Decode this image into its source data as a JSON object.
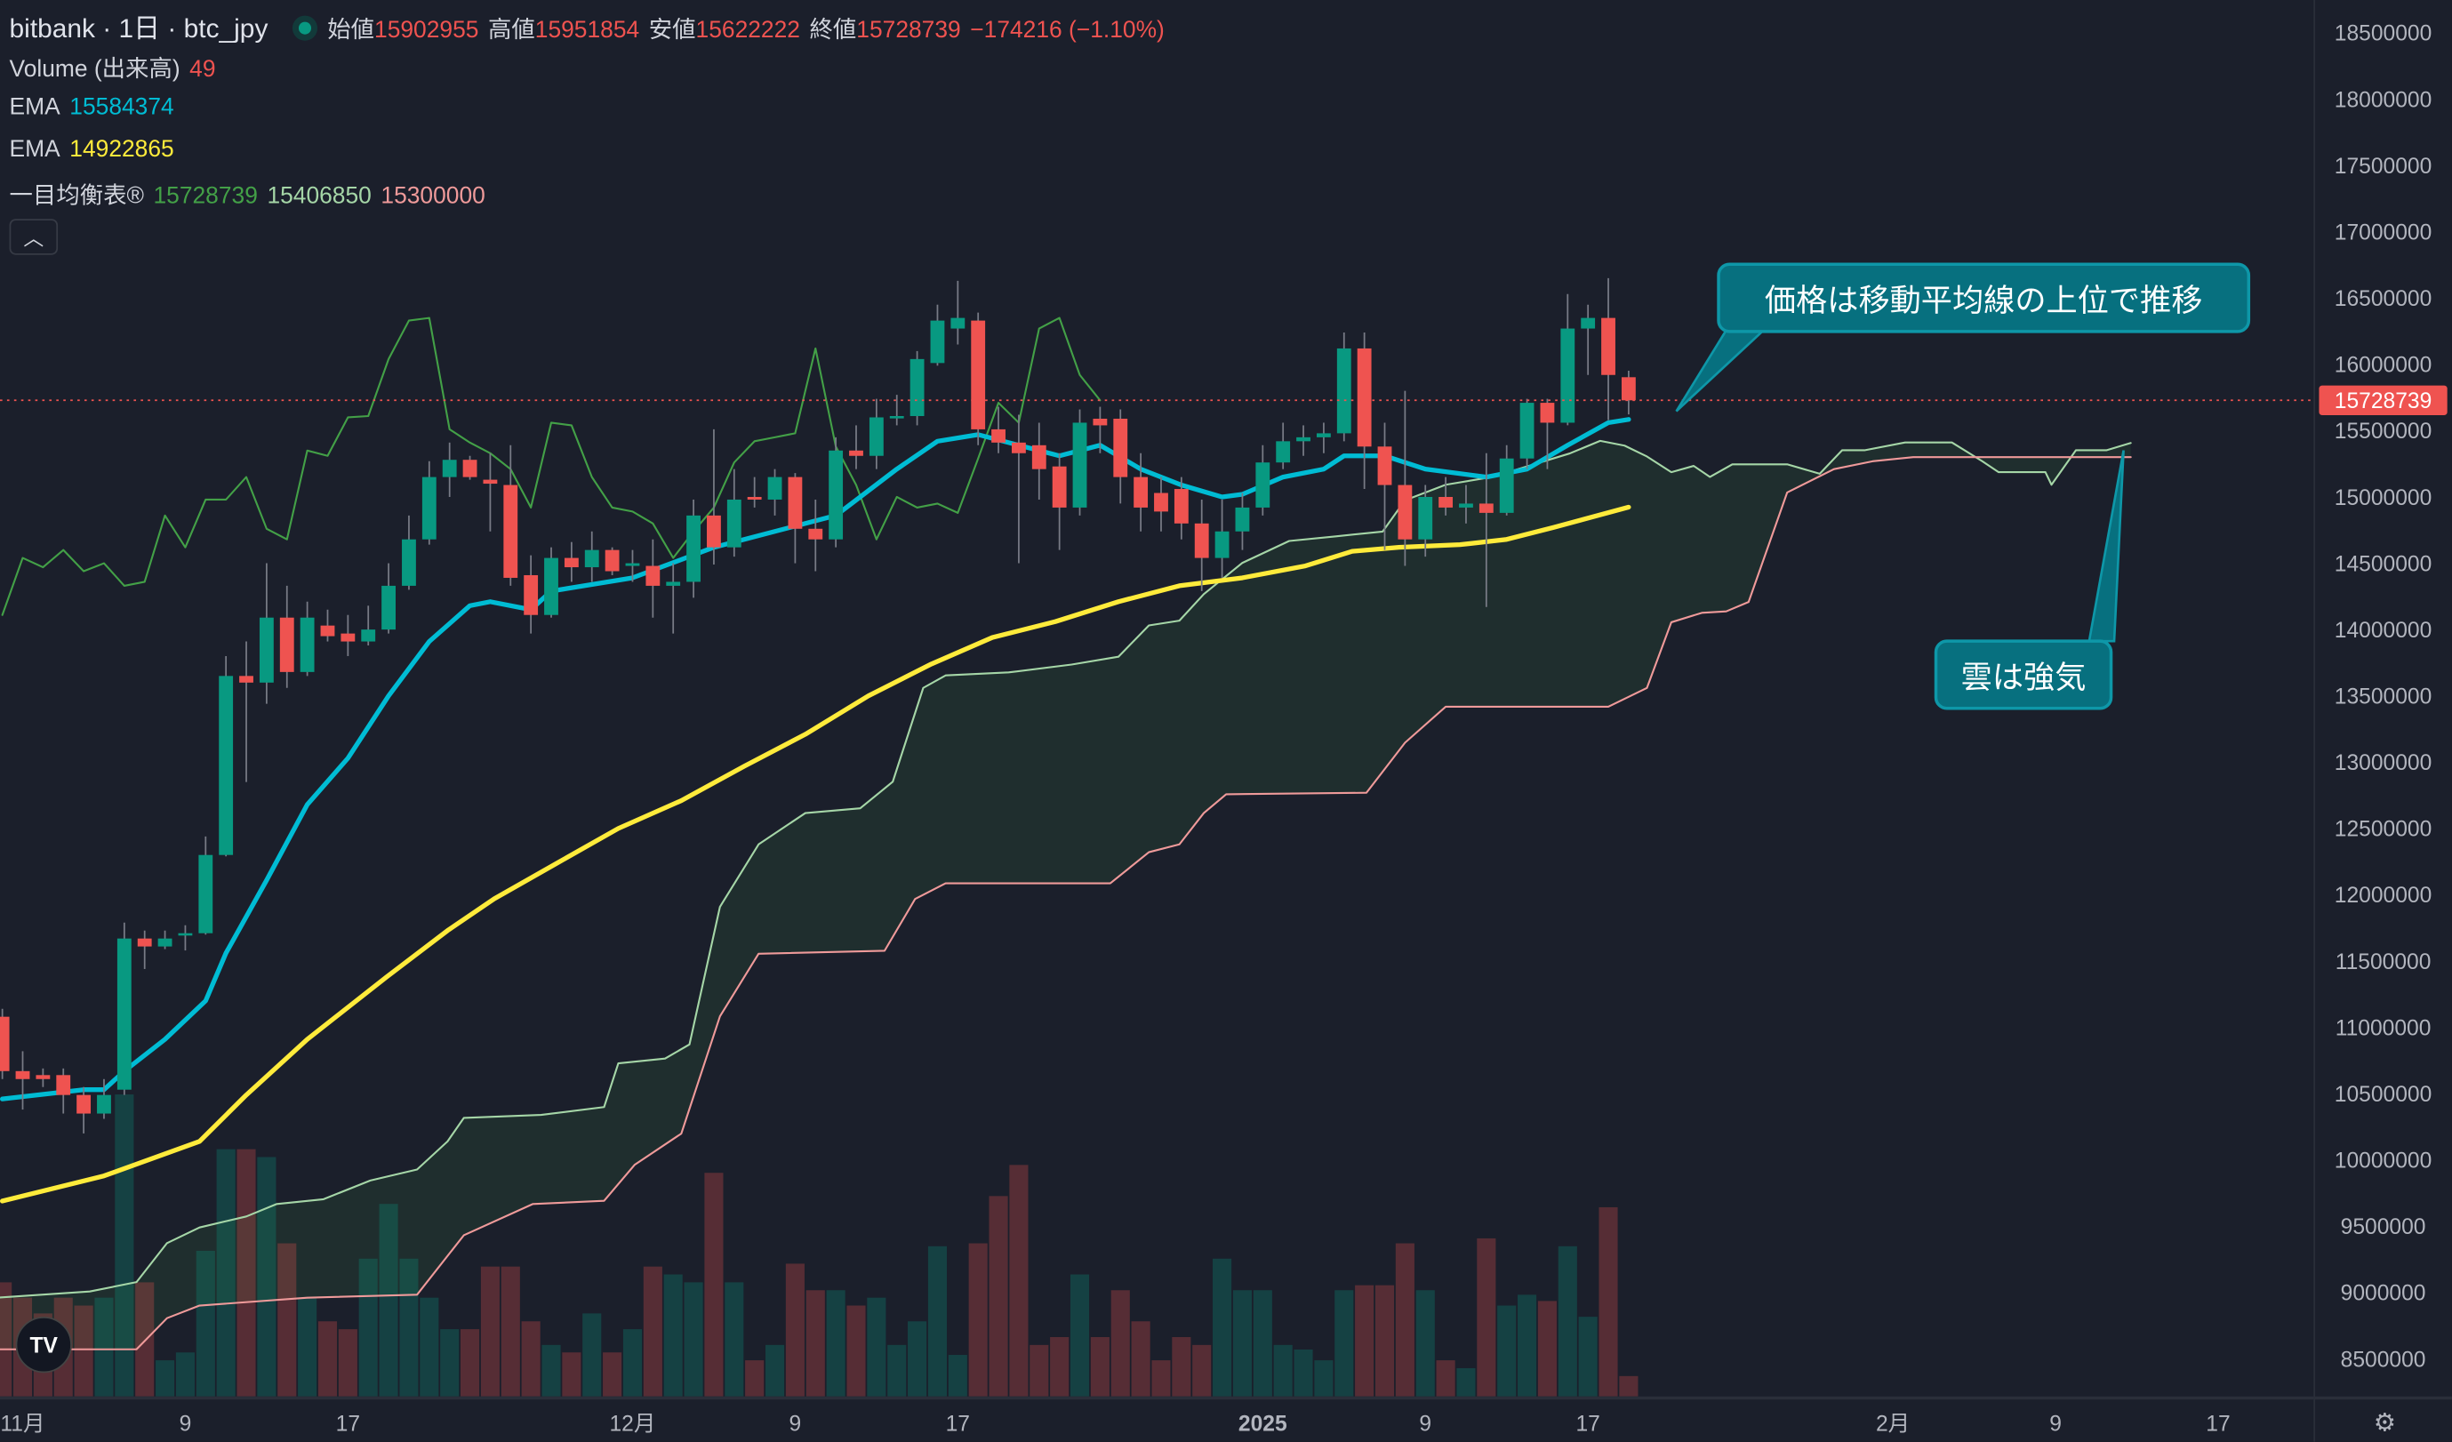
{
  "header": {
    "title": "bitbank · 1日 · btc_jpy",
    "open_label": "始値",
    "open": "15902955",
    "high_label": "高値",
    "high": "15951854",
    "low_label": "安値",
    "low": "15622222",
    "close_label": "終値",
    "close": "15728739",
    "change": "−174216 (−1.10%)"
  },
  "indicators": {
    "volume_label": "Volume (出来高)",
    "volume_value": "49",
    "ema1_label": "EMA",
    "ema1_value": "15584374",
    "ema2_label": "EMA",
    "ema2_value": "14922865",
    "ichimoku_label": "一目均衡表®",
    "ichimoku_lagging": "15728739",
    "ichimoku_span_a": "15406850",
    "ichimoku_span_b": "15300000",
    "collapse_icon": "chevron-up"
  },
  "annotations": {
    "callout_1": "価格は移動平均線の上位で推移",
    "callout_2": "雲は強気"
  },
  "colors": {
    "background": "#1b1f2b",
    "up": "#089981",
    "down": "#ef5350",
    "ema_fast": "#00bcd4",
    "ema_slow": "#ffeb3b",
    "lagging": "#43a047",
    "span_a": "#a5d6a7",
    "span_b": "#ef9a9a",
    "callout": "#07707f"
  },
  "chart_data": {
    "type": "candlestick",
    "symbol": "btc_jpy",
    "interval": "1日",
    "ylim": [
      8300000,
      18700000
    ],
    "y_ticks": [
      18500000,
      18000000,
      17500000,
      17000000,
      16500000,
      16000000,
      15500000,
      15000000,
      14500000,
      14000000,
      13500000,
      13000000,
      12500000,
      12000000,
      11500000,
      11000000,
      10500000,
      10000000,
      9500000,
      9000000,
      8500000
    ],
    "last_price": "15728739",
    "x_ticks": [
      {
        "label": "11月",
        "day": 1
      },
      {
        "label": "9",
        "day": 9
      },
      {
        "label": "17",
        "day": 17
      },
      {
        "label": "12月",
        "day": 31
      },
      {
        "label": "9",
        "day": 39
      },
      {
        "label": "17",
        "day": 47
      },
      {
        "label": "2025",
        "day": 62,
        "bold": true
      },
      {
        "label": "9",
        "day": 70
      },
      {
        "label": "17",
        "day": 78
      },
      {
        "label": "2月",
        "day": 93
      },
      {
        "label": "9",
        "day": 101
      },
      {
        "label": "17",
        "day": 109
      }
    ],
    "ohlc_format": "[open, high, low, close]",
    "candles": [
      [
        11080000,
        11140000,
        10610000,
        10670000
      ],
      [
        10670000,
        10820000,
        10380000,
        10610000
      ],
      [
        10640000,
        10690000,
        10550000,
        10610000
      ],
      [
        10640000,
        10690000,
        10350000,
        10490000
      ],
      [
        10490000,
        10550000,
        10200000,
        10350000
      ],
      [
        10350000,
        10610000,
        10310000,
        10490000
      ],
      [
        10530000,
        11790000,
        10490000,
        11670000
      ],
      [
        11670000,
        11730000,
        11440000,
        11610000
      ],
      [
        11610000,
        11730000,
        11590000,
        11670000
      ],
      [
        11700000,
        11770000,
        11580000,
        11710000
      ],
      [
        11710000,
        12440000,
        11700000,
        12300000
      ],
      [
        12300000,
        13800000,
        12290000,
        13650000
      ],
      [
        13650000,
        13910000,
        12850000,
        13600000
      ],
      [
        13600000,
        14500000,
        13440000,
        14090000
      ],
      [
        14090000,
        14330000,
        13560000,
        13680000
      ],
      [
        13680000,
        14210000,
        13650000,
        14090000
      ],
      [
        14030000,
        14150000,
        13910000,
        13950000
      ],
      [
        13970000,
        14110000,
        13800000,
        13910000
      ],
      [
        13910000,
        14180000,
        13880000,
        14000000
      ],
      [
        14000000,
        14500000,
        13970000,
        14330000
      ],
      [
        14330000,
        14860000,
        14300000,
        14680000
      ],
      [
        14680000,
        15270000,
        14640000,
        15150000
      ],
      [
        15150000,
        15410000,
        15000000,
        15280000
      ],
      [
        15280000,
        15310000,
        15130000,
        15150000
      ],
      [
        15130000,
        15330000,
        14740000,
        15100000
      ],
      [
        15090000,
        15390000,
        14330000,
        14390000
      ],
      [
        14410000,
        14560000,
        13970000,
        14110000
      ],
      [
        14110000,
        14620000,
        14090000,
        14540000
      ],
      [
        14540000,
        14660000,
        14360000,
        14470000
      ],
      [
        14470000,
        14740000,
        14360000,
        14600000
      ],
      [
        14600000,
        14620000,
        14410000,
        14440000
      ],
      [
        14480000,
        14600000,
        14360000,
        14500000
      ],
      [
        14480000,
        14680000,
        14090000,
        14330000
      ],
      [
        14330000,
        14500000,
        13970000,
        14360000
      ],
      [
        14360000,
        14980000,
        14240000,
        14860000
      ],
      [
        14860000,
        15510000,
        14490000,
        14620000
      ],
      [
        14620000,
        15210000,
        14550000,
        14980000
      ],
      [
        15000000,
        15150000,
        14920000,
        14980000
      ],
      [
        14980000,
        15210000,
        14860000,
        15150000
      ],
      [
        15150000,
        15180000,
        14500000,
        14760000
      ],
      [
        14760000,
        14980000,
        14440000,
        14680000
      ],
      [
        14680000,
        15450000,
        14620000,
        15350000
      ],
      [
        15350000,
        15540000,
        15210000,
        15310000
      ],
      [
        15310000,
        15740000,
        15210000,
        15600000
      ],
      [
        15600000,
        15770000,
        15540000,
        15610000
      ],
      [
        15610000,
        16100000,
        15540000,
        16040000
      ],
      [
        16010000,
        16450000,
        15990000,
        16330000
      ],
      [
        16270000,
        16630000,
        16150000,
        16350000
      ],
      [
        16330000,
        16390000,
        15390000,
        15510000
      ],
      [
        15510000,
        15680000,
        15330000,
        15410000
      ],
      [
        15410000,
        15620000,
        14500000,
        15330000
      ],
      [
        15390000,
        15560000,
        14980000,
        15210000
      ],
      [
        15230000,
        15330000,
        14600000,
        14920000
      ],
      [
        14920000,
        15660000,
        14860000,
        15560000
      ],
      [
        15590000,
        15680000,
        15330000,
        15540000
      ],
      [
        15590000,
        15660000,
        14950000,
        15150000
      ],
      [
        15150000,
        15330000,
        14740000,
        14920000
      ],
      [
        15030000,
        15150000,
        14740000,
        14890000
      ],
      [
        15060000,
        15150000,
        14680000,
        14800000
      ],
      [
        14800000,
        14980000,
        14290000,
        14540000
      ],
      [
        14540000,
        14980000,
        14390000,
        14740000
      ],
      [
        14740000,
        15030000,
        14600000,
        14920000
      ],
      [
        14920000,
        15390000,
        14860000,
        15260000
      ],
      [
        15260000,
        15560000,
        15210000,
        15420000
      ],
      [
        15420000,
        15540000,
        15310000,
        15450000
      ],
      [
        15450000,
        15560000,
        15330000,
        15480000
      ],
      [
        15480000,
        16240000,
        15420000,
        16120000
      ],
      [
        16120000,
        16240000,
        15060000,
        15380000
      ],
      [
        15380000,
        15560000,
        14600000,
        15090000
      ],
      [
        15090000,
        15800000,
        14480000,
        14680000
      ],
      [
        14680000,
        15090000,
        14550000,
        15000000
      ],
      [
        15000000,
        15150000,
        14860000,
        14920000
      ],
      [
        14920000,
        15090000,
        14800000,
        14950000
      ],
      [
        14950000,
        15330000,
        14170000,
        14880000
      ],
      [
        14880000,
        15390000,
        14860000,
        15290000
      ],
      [
        15290000,
        15740000,
        15210000,
        15710000
      ],
      [
        15710000,
        15740000,
        15210000,
        15560000
      ],
      [
        15560000,
        16530000,
        15540000,
        16270000
      ],
      [
        16270000,
        16450000,
        15920000,
        16350000
      ],
      [
        16350000,
        16650000,
        15580000,
        15920000
      ],
      [
        15902955,
        15951854,
        15622222,
        15728739
      ]
    ],
    "volume": [
      275,
      238,
      200,
      238,
      219,
      238,
      728,
      275,
      87,
      106,
      351,
      596,
      596,
      577,
      369,
      238,
      181,
      162,
      332,
      464,
      332,
      238,
      162,
      162,
      313,
      313,
      181,
      124,
      106,
      200,
      106,
      162,
      313,
      294,
      275,
      539,
      275,
      87,
      124,
      320,
      256,
      256,
      219,
      238,
      124,
      181,
      362,
      100,
      369,
      483,
      558,
      124,
      143,
      294,
      143,
      256,
      181,
      87,
      143,
      124,
      332,
      256,
      256,
      124,
      113,
      87,
      256,
      268,
      268,
      369,
      256,
      87,
      68,
      381,
      219,
      245,
      230,
      362,
      192,
      456,
      49
    ],
    "ema_fast_points": [
      [
        0,
        10460000
      ],
      [
        4,
        10530000
      ],
      [
        5,
        10530000
      ],
      [
        6,
        10670000
      ],
      [
        8,
        10910000
      ],
      [
        10,
        11200000
      ],
      [
        11,
        11560000
      ],
      [
        13,
        12110000
      ],
      [
        15,
        12680000
      ],
      [
        17,
        13030000
      ],
      [
        19,
        13500000
      ],
      [
        21,
        13910000
      ],
      [
        23,
        14180000
      ],
      [
        24,
        14210000
      ],
      [
        26,
        14150000
      ],
      [
        27,
        14290000
      ],
      [
        31,
        14390000
      ],
      [
        35,
        14620000
      ],
      [
        38,
        14740000
      ],
      [
        41,
        14860000
      ],
      [
        44,
        15210000
      ],
      [
        46,
        15420000
      ],
      [
        48,
        15470000
      ],
      [
        50,
        15390000
      ],
      [
        52,
        15310000
      ],
      [
        54,
        15390000
      ],
      [
        56,
        15210000
      ],
      [
        58,
        15090000
      ],
      [
        60,
        15000000
      ],
      [
        61,
        15020000
      ],
      [
        63,
        15150000
      ],
      [
        65,
        15210000
      ],
      [
        66,
        15310000
      ],
      [
        68,
        15310000
      ],
      [
        70,
        15210000
      ],
      [
        73,
        15150000
      ],
      [
        75,
        15210000
      ],
      [
        77,
        15390000
      ],
      [
        79,
        15560000
      ],
      [
        80,
        15584374
      ]
    ],
    "ema_slow_points": [
      [
        0,
        9690000
      ],
      [
        5,
        9880000
      ],
      [
        9.7,
        10140000
      ],
      [
        12,
        10490000
      ],
      [
        15,
        10910000
      ],
      [
        18.9,
        11380000
      ],
      [
        21.9,
        11730000
      ],
      [
        24.2,
        11970000
      ],
      [
        27.3,
        12240000
      ],
      [
        30.3,
        12500000
      ],
      [
        33.4,
        12710000
      ],
      [
        36.5,
        12970000
      ],
      [
        39.5,
        13210000
      ],
      [
        42.6,
        13500000
      ],
      [
        45.7,
        13740000
      ],
      [
        48.7,
        13940000
      ],
      [
        51.8,
        14060000
      ],
      [
        54.9,
        14210000
      ],
      [
        57.9,
        14330000
      ],
      [
        61,
        14390000
      ],
      [
        64.1,
        14480000
      ],
      [
        66.4,
        14590000
      ],
      [
        68.7,
        14620000
      ],
      [
        71.7,
        14640000
      ],
      [
        74,
        14680000
      ],
      [
        76.3,
        14770000
      ],
      [
        80,
        14922865
      ]
    ],
    "ichimoku_lagging_shift": 26,
    "span_a_points": [
      [
        -0.3,
        8961000
      ],
      [
        4.3,
        9008000
      ],
      [
        6.6,
        9079000
      ],
      [
        8.1,
        9373000
      ],
      [
        9.7,
        9491000
      ],
      [
        12,
        9574000
      ],
      [
        13.5,
        9668000
      ],
      [
        15.8,
        9704000
      ],
      [
        18.1,
        9845000
      ],
      [
        20.4,
        9928000
      ],
      [
        21.9,
        10140000
      ],
      [
        22.7,
        10317000
      ],
      [
        26.5,
        10340000
      ],
      [
        29.6,
        10399000
      ],
      [
        30.3,
        10729000
      ],
      [
        32.6,
        10765000
      ],
      [
        33.8,
        10871000
      ],
      [
        35.3,
        11909000
      ],
      [
        37.2,
        12380000
      ],
      [
        39.5,
        12616000
      ],
      [
        42.2,
        12652000
      ],
      [
        43.8,
        12852000
      ],
      [
        45.3,
        13560000
      ],
      [
        46.4,
        13654000
      ],
      [
        49.5,
        13677000
      ],
      [
        52.6,
        13736000
      ],
      [
        54.9,
        13795000
      ],
      [
        56.4,
        14031000
      ],
      [
        57.9,
        14067000
      ],
      [
        59.1,
        14267000
      ],
      [
        61,
        14503000
      ],
      [
        63.3,
        14668000
      ],
      [
        65.6,
        14703000
      ],
      [
        67.9,
        14739000
      ],
      [
        69,
        14975000
      ],
      [
        71,
        15092000
      ],
      [
        73.3,
        15151000
      ],
      [
        77.1,
        15328000
      ],
      [
        78.6,
        15423000
      ],
      [
        79.8,
        15387000
      ],
      [
        80.9,
        15305000
      ],
      [
        82.1,
        15187000
      ],
      [
        83.2,
        15234000
      ],
      [
        84,
        15151000
      ],
      [
        85.1,
        15246000
      ],
      [
        87.8,
        15246000
      ],
      [
        89.4,
        15175000
      ],
      [
        90.5,
        15352000
      ],
      [
        91.6,
        15352000
      ],
      [
        93.6,
        15411000
      ],
      [
        95.9,
        15411000
      ],
      [
        97.4,
        15269000
      ],
      [
        98.2,
        15187000
      ],
      [
        100.5,
        15187000
      ],
      [
        100.8,
        15092000
      ],
      [
        102,
        15352000
      ],
      [
        103.5,
        15352000
      ],
      [
        104.7,
        15406850
      ]
    ],
    "span_b_points": [
      [
        -0.3,
        8572000
      ],
      [
        6.6,
        8572000
      ],
      [
        8.1,
        8807000
      ],
      [
        9.7,
        8902000
      ],
      [
        15,
        8961000
      ],
      [
        20.4,
        8984000
      ],
      [
        22.7,
        9432000
      ],
      [
        26.1,
        9668000
      ],
      [
        29.6,
        9692000
      ],
      [
        31.1,
        9963000
      ],
      [
        33.4,
        10199000
      ],
      [
        35.3,
        11083000
      ],
      [
        37.2,
        11555000
      ],
      [
        43.4,
        11578000
      ],
      [
        44.9,
        11968000
      ],
      [
        46.4,
        12086000
      ],
      [
        54.5,
        12086000
      ],
      [
        56.4,
        12321000
      ],
      [
        57.9,
        12380000
      ],
      [
        59.1,
        12616000
      ],
      [
        60.2,
        12758000
      ],
      [
        67.1,
        12769000
      ],
      [
        69,
        13147000
      ],
      [
        71,
        13418000
      ],
      [
        79,
        13418000
      ],
      [
        80.9,
        13560000
      ],
      [
        82.1,
        14055000
      ],
      [
        83.6,
        14126000
      ],
      [
        84.8,
        14137000
      ],
      [
        85.9,
        14208000
      ],
      [
        87.8,
        15034000
      ],
      [
        90.1,
        15210000
      ],
      [
        92,
        15269000
      ],
      [
        94,
        15300000
      ],
      [
        104.7,
        15300000
      ]
    ]
  }
}
